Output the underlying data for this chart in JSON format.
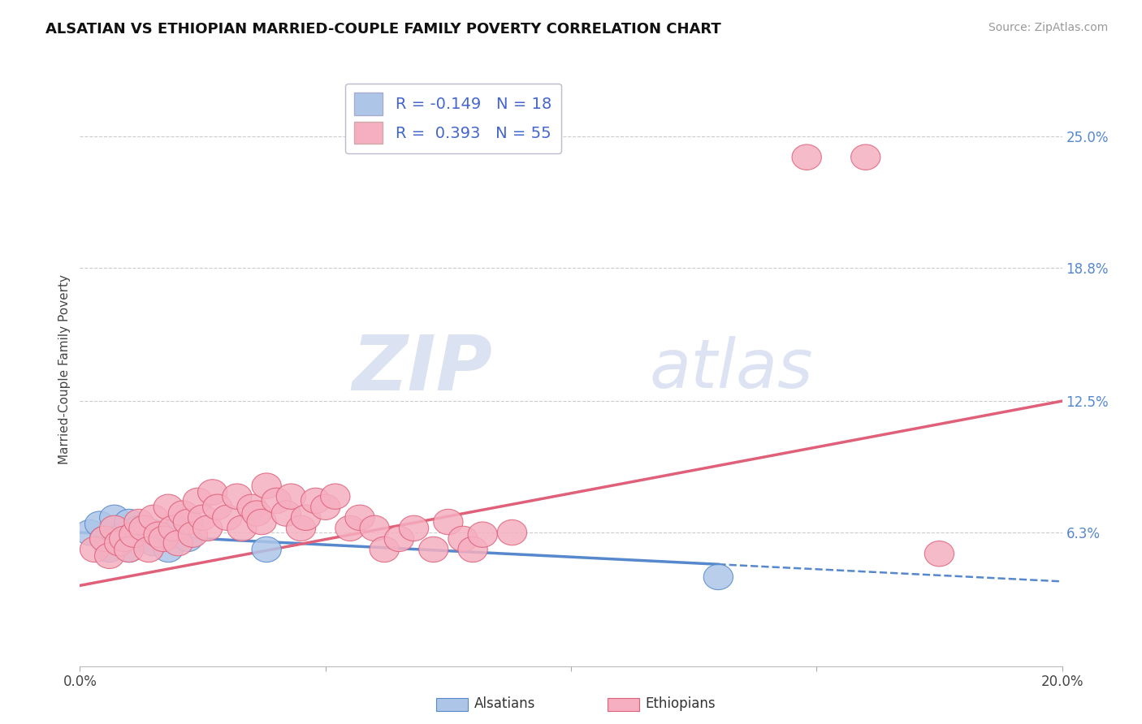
{
  "title": "ALSATIAN VS ETHIOPIAN MARRIED-COUPLE FAMILY POVERTY CORRELATION CHART",
  "source": "Source: ZipAtlas.com",
  "ylabel": "Married-Couple Family Poverty",
  "xlim": [
    0.0,
    0.2
  ],
  "ylim": [
    0.0,
    0.28
  ],
  "yticks_right": [
    0.063,
    0.125,
    0.188,
    0.25
  ],
  "yticks_right_labels": [
    "6.3%",
    "12.5%",
    "18.8%",
    "25.0%"
  ],
  "alsatian_color": "#adc6e8",
  "ethiopian_color": "#f5afc0",
  "alsatian_R": -0.149,
  "alsatian_N": 18,
  "ethiopian_R": 0.393,
  "ethiopian_N": 55,
  "alsatian_line_color": "#5588cc",
  "ethiopian_line_color": "#e0607a",
  "legend_color": "#4466cc",
  "legend_label_als": "Alsatians",
  "legend_label_eth": "Ethiopians",
  "als_line_x0": 0.0,
  "als_line_y0": 0.063,
  "als_line_x1": 0.13,
  "als_line_y1": 0.048,
  "eth_line_x0": 0.0,
  "eth_line_y0": 0.038,
  "eth_line_x1": 0.2,
  "eth_line_y1": 0.125,
  "alsatian_scatter": [
    [
      0.002,
      0.063
    ],
    [
      0.004,
      0.067
    ],
    [
      0.005,
      0.06
    ],
    [
      0.006,
      0.055
    ],
    [
      0.007,
      0.07
    ],
    [
      0.008,
      0.058
    ],
    [
      0.009,
      0.062
    ],
    [
      0.01,
      0.068
    ],
    [
      0.01,
      0.055
    ],
    [
      0.012,
      0.065
    ],
    [
      0.013,
      0.06
    ],
    [
      0.015,
      0.063
    ],
    [
      0.015,
      0.058
    ],
    [
      0.018,
      0.055
    ],
    [
      0.02,
      0.065
    ],
    [
      0.022,
      0.06
    ],
    [
      0.038,
      0.055
    ],
    [
      0.13,
      0.042
    ]
  ],
  "ethiopian_scatter": [
    [
      0.003,
      0.055
    ],
    [
      0.005,
      0.06
    ],
    [
      0.006,
      0.052
    ],
    [
      0.007,
      0.065
    ],
    [
      0.008,
      0.058
    ],
    [
      0.009,
      0.06
    ],
    [
      0.01,
      0.055
    ],
    [
      0.011,
      0.062
    ],
    [
      0.012,
      0.068
    ],
    [
      0.013,
      0.065
    ],
    [
      0.014,
      0.055
    ],
    [
      0.015,
      0.07
    ],
    [
      0.016,
      0.062
    ],
    [
      0.017,
      0.06
    ],
    [
      0.018,
      0.075
    ],
    [
      0.019,
      0.065
    ],
    [
      0.02,
      0.058
    ],
    [
      0.021,
      0.072
    ],
    [
      0.022,
      0.068
    ],
    [
      0.023,
      0.062
    ],
    [
      0.024,
      0.078
    ],
    [
      0.025,
      0.07
    ],
    [
      0.026,
      0.065
    ],
    [
      0.027,
      0.082
    ],
    [
      0.028,
      0.075
    ],
    [
      0.03,
      0.07
    ],
    [
      0.032,
      0.08
    ],
    [
      0.033,
      0.065
    ],
    [
      0.035,
      0.075
    ],
    [
      0.036,
      0.072
    ],
    [
      0.037,
      0.068
    ],
    [
      0.038,
      0.085
    ],
    [
      0.04,
      0.078
    ],
    [
      0.042,
      0.072
    ],
    [
      0.043,
      0.08
    ],
    [
      0.045,
      0.065
    ],
    [
      0.046,
      0.07
    ],
    [
      0.048,
      0.078
    ],
    [
      0.05,
      0.075
    ],
    [
      0.052,
      0.08
    ],
    [
      0.055,
      0.065
    ],
    [
      0.057,
      0.07
    ],
    [
      0.06,
      0.065
    ],
    [
      0.062,
      0.055
    ],
    [
      0.065,
      0.06
    ],
    [
      0.068,
      0.065
    ],
    [
      0.072,
      0.055
    ],
    [
      0.075,
      0.068
    ],
    [
      0.078,
      0.06
    ],
    [
      0.08,
      0.055
    ],
    [
      0.082,
      0.062
    ],
    [
      0.088,
      0.063
    ],
    [
      0.148,
      0.24
    ],
    [
      0.16,
      0.24
    ],
    [
      0.175,
      0.053
    ]
  ]
}
